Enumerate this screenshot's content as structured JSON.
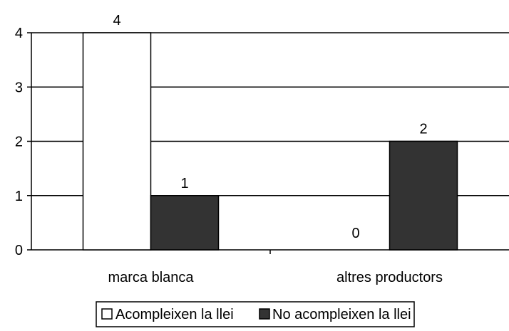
{
  "chart_data": {
    "type": "bar",
    "categories": [
      "marca blanca",
      "altres productors"
    ],
    "series": [
      {
        "name": "Acompleixen la llei",
        "values": [
          4,
          0
        ],
        "color": "#ffffff"
      },
      {
        "name": "No acompleixen la llei",
        "values": [
          1,
          2
        ],
        "color": "#333333"
      }
    ],
    "ylim": [
      0,
      4
    ],
    "yticks": [
      "0",
      "1",
      "2",
      "3",
      "4"
    ],
    "data_labels": [
      [
        "4",
        "0"
      ],
      [
        "1",
        "2"
      ]
    ],
    "grid": true,
    "legend_position": "bottom",
    "title": "",
    "xlabel": "",
    "ylabel": ""
  }
}
